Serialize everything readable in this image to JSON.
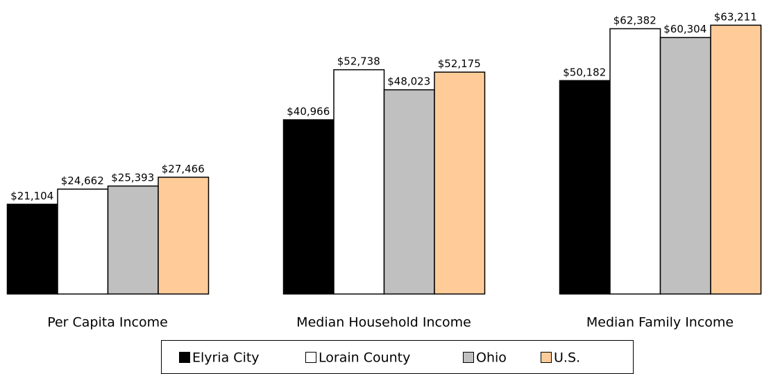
{
  "chart_data": {
    "type": "bar",
    "categories": [
      "Per Capita Income",
      "Median Household Income",
      "Median Family Income"
    ],
    "series": [
      {
        "name": "Elyria City",
        "color": "#000000",
        "values": [
          21104,
          40966,
          50182
        ],
        "value_labels": [
          "$21,104",
          "$40,966",
          "$50,182"
        ]
      },
      {
        "name": "Lorain County",
        "color": "#ffffff",
        "values": [
          24662,
          52738,
          62382
        ],
        "value_labels": [
          "$24,662",
          "$52,738",
          "$62,382"
        ]
      },
      {
        "name": "Ohio",
        "color": "#c0c0c0",
        "values": [
          25393,
          48023,
          60304
        ],
        "value_labels": [
          "$25,393",
          "$48,023",
          "$60,304"
        ]
      },
      {
        "name": "U.S.",
        "color": "#ffcc99",
        "values": [
          27466,
          52175,
          63211
        ],
        "value_labels": [
          "$27,466",
          "$52,175",
          "$63,211"
        ]
      }
    ]
  }
}
